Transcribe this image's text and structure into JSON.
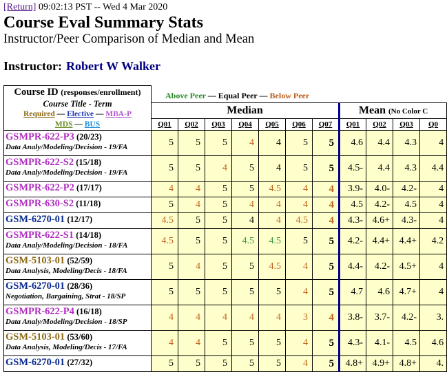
{
  "header": {
    "return_link": "[Return]",
    "timestamp": "09:02:13 PST -- Wed 4 Mar 2020",
    "title": "Course Eval Summary Stats",
    "subtitle": "Instructor/Peer Comparison of Median and Mean",
    "instructor_label": "Instructor:",
    "instructor_name": "Robert W Walker"
  },
  "table": {
    "id_head": "Course ID",
    "id_head_sub": "(responses/enrollment)",
    "title_head": "Course Title - Term",
    "legend_required": "Required",
    "legend_elective": "Elective",
    "legend_mbap": "MBA-P",
    "legend_mds": "MDS",
    "legend_bus": "BUS",
    "legend_sep": "—",
    "legend_above": "Above Peer",
    "legend_equal": "Equal Peer",
    "legend_below": "Below Peer",
    "median_head": "Median",
    "mean_head": "Mean",
    "mean_note": "(No Color C",
    "median_questions": [
      "Q01",
      "Q02",
      "Q03",
      "Q04",
      "Q05",
      "Q06",
      "Q07"
    ],
    "mean_questions": [
      "Q01",
      "Q02",
      "Q03",
      "Q0"
    ],
    "rows": [
      {
        "id": "GSMPR-622-P3",
        "ratio": "(20/23)",
        "title": "Data Analy/Modeling/Decision - 19/FA",
        "cat": "mba",
        "median": [
          {
            "v": "5",
            "s": "equal"
          },
          {
            "v": "5",
            "s": "equal"
          },
          {
            "v": "5",
            "s": "equal"
          },
          {
            "v": "4",
            "s": "below"
          },
          {
            "v": "4",
            "s": "equal"
          },
          {
            "v": "5",
            "s": "equal"
          },
          {
            "v": "5",
            "s": "equal"
          }
        ],
        "mean": [
          "4.6",
          "4.4",
          "4.3",
          "4"
        ]
      },
      {
        "id": "GSMPR-622-S2",
        "ratio": "(15/18)",
        "title": "Data Analy/Modeling/Decision - 19/FA",
        "cat": "mba",
        "median": [
          {
            "v": "5",
            "s": "equal"
          },
          {
            "v": "5",
            "s": "equal"
          },
          {
            "v": "4",
            "s": "below"
          },
          {
            "v": "5",
            "s": "equal"
          },
          {
            "v": "4",
            "s": "equal"
          },
          {
            "v": "5",
            "s": "equal"
          },
          {
            "v": "5",
            "s": "equal"
          }
        ],
        "mean": [
          "4.5-",
          "4.4",
          "4.3",
          "4.4"
        ]
      },
      {
        "id": "GSMPR-622-P2",
        "ratio": "(17/17)",
        "title": "",
        "cat": "mba",
        "median": [
          {
            "v": "4",
            "s": "below"
          },
          {
            "v": "4",
            "s": "below"
          },
          {
            "v": "5",
            "s": "equal"
          },
          {
            "v": "5",
            "s": "equal"
          },
          {
            "v": "4.5",
            "s": "below"
          },
          {
            "v": "4",
            "s": "below"
          },
          {
            "v": "4",
            "s": "below"
          }
        ],
        "mean": [
          "3.9-",
          "4.0-",
          "4.2-",
          "4"
        ]
      },
      {
        "id": "GSMPR-630-S2",
        "ratio": "(11/18)",
        "title": "",
        "cat": "mba",
        "median": [
          {
            "v": "5",
            "s": "equal"
          },
          {
            "v": "4",
            "s": "below"
          },
          {
            "v": "5",
            "s": "equal"
          },
          {
            "v": "4",
            "s": "below"
          },
          {
            "v": "4",
            "s": "below"
          },
          {
            "v": "4",
            "s": "below"
          },
          {
            "v": "4",
            "s": "below"
          }
        ],
        "mean": [
          "4.5",
          "4.2-",
          "4.5",
          "4"
        ]
      },
      {
        "id": "GSM-6270-01",
        "ratio": "(12/17)",
        "title": "",
        "cat": "core",
        "median": [
          {
            "v": "4.5",
            "s": "below"
          },
          {
            "v": "5",
            "s": "equal"
          },
          {
            "v": "5",
            "s": "equal"
          },
          {
            "v": "4",
            "s": "equal"
          },
          {
            "v": "4",
            "s": "below"
          },
          {
            "v": "4.5",
            "s": "below"
          },
          {
            "v": "4",
            "s": "below"
          }
        ],
        "mean": [
          "4.3-",
          "4.6+",
          "4.3-",
          "4"
        ]
      },
      {
        "id": "GSMPR-622-S1",
        "ratio": "(14/18)",
        "title": "Data Analy/Modeling/Decision - 18/FA",
        "cat": "mba",
        "median": [
          {
            "v": "4.5",
            "s": "below"
          },
          {
            "v": "5",
            "s": "equal"
          },
          {
            "v": "5",
            "s": "equal"
          },
          {
            "v": "4.5",
            "s": "above"
          },
          {
            "v": "4.5",
            "s": "above"
          },
          {
            "v": "5",
            "s": "equal"
          },
          {
            "v": "5",
            "s": "equal"
          }
        ],
        "mean": [
          "4.2-",
          "4.4+",
          "4.4+",
          "4.2"
        ]
      },
      {
        "id": "GSM-5103-01",
        "ratio": "(52/59)",
        "title": "Data Analysis, Modeling/Decis - 18/FA",
        "cat": "req",
        "median": [
          {
            "v": "5",
            "s": "equal"
          },
          {
            "v": "4",
            "s": "below"
          },
          {
            "v": "5",
            "s": "equal"
          },
          {
            "v": "5",
            "s": "equal"
          },
          {
            "v": "4.5",
            "s": "below"
          },
          {
            "v": "4",
            "s": "below"
          },
          {
            "v": "5",
            "s": "equal"
          }
        ],
        "mean": [
          "4.4-",
          "4.2-",
          "4.5+",
          "4"
        ]
      },
      {
        "id": "GSM-6270-01",
        "ratio": "(28/36)",
        "title": "Negotiation, Bargaining, Strat - 18/SP",
        "cat": "core",
        "median": [
          {
            "v": "5",
            "s": "equal"
          },
          {
            "v": "5",
            "s": "equal"
          },
          {
            "v": "5",
            "s": "equal"
          },
          {
            "v": "5",
            "s": "equal"
          },
          {
            "v": "5",
            "s": "equal"
          },
          {
            "v": "4",
            "s": "below"
          },
          {
            "v": "5",
            "s": "equal"
          }
        ],
        "mean": [
          "4.7",
          "4.6",
          "4.7+",
          "4"
        ]
      },
      {
        "id": "GSMPR-622-P4",
        "ratio": "(16/18)",
        "title": "Data Analy/Modeling/Decision - 18/SP",
        "cat": "mba",
        "median": [
          {
            "v": "4",
            "s": "below"
          },
          {
            "v": "4",
            "s": "below"
          },
          {
            "v": "4",
            "s": "below"
          },
          {
            "v": "4",
            "s": "below"
          },
          {
            "v": "4",
            "s": "below"
          },
          {
            "v": "3",
            "s": "below"
          },
          {
            "v": "4",
            "s": "below"
          }
        ],
        "mean": [
          "3.8-",
          "3.7-",
          "4.2-",
          "3."
        ]
      },
      {
        "id": "GSM-5103-01",
        "ratio": "(53/60)",
        "title": "Data Analysis, Modeling/Decis - 17/FA",
        "cat": "req",
        "median": [
          {
            "v": "4",
            "s": "below"
          },
          {
            "v": "4",
            "s": "below"
          },
          {
            "v": "5",
            "s": "equal"
          },
          {
            "v": "5",
            "s": "equal"
          },
          {
            "v": "5",
            "s": "equal"
          },
          {
            "v": "4",
            "s": "below"
          },
          {
            "v": "5",
            "s": "equal"
          }
        ],
        "mean": [
          "4.3-",
          "4.1-",
          "4.5",
          "4.6"
        ]
      },
      {
        "id": "GSM-6270-01",
        "ratio": "(27/32)",
        "title": "",
        "cat": "core",
        "median": [
          {
            "v": "5",
            "s": "equal"
          },
          {
            "v": "5",
            "s": "equal"
          },
          {
            "v": "5",
            "s": "equal"
          },
          {
            "v": "5",
            "s": "equal"
          },
          {
            "v": "5",
            "s": "equal"
          },
          {
            "v": "4",
            "s": "below"
          },
          {
            "v": "5",
            "s": "equal"
          }
        ],
        "mean": [
          "4.8+",
          "4.9+",
          "4.8+",
          "4."
        ]
      }
    ]
  }
}
